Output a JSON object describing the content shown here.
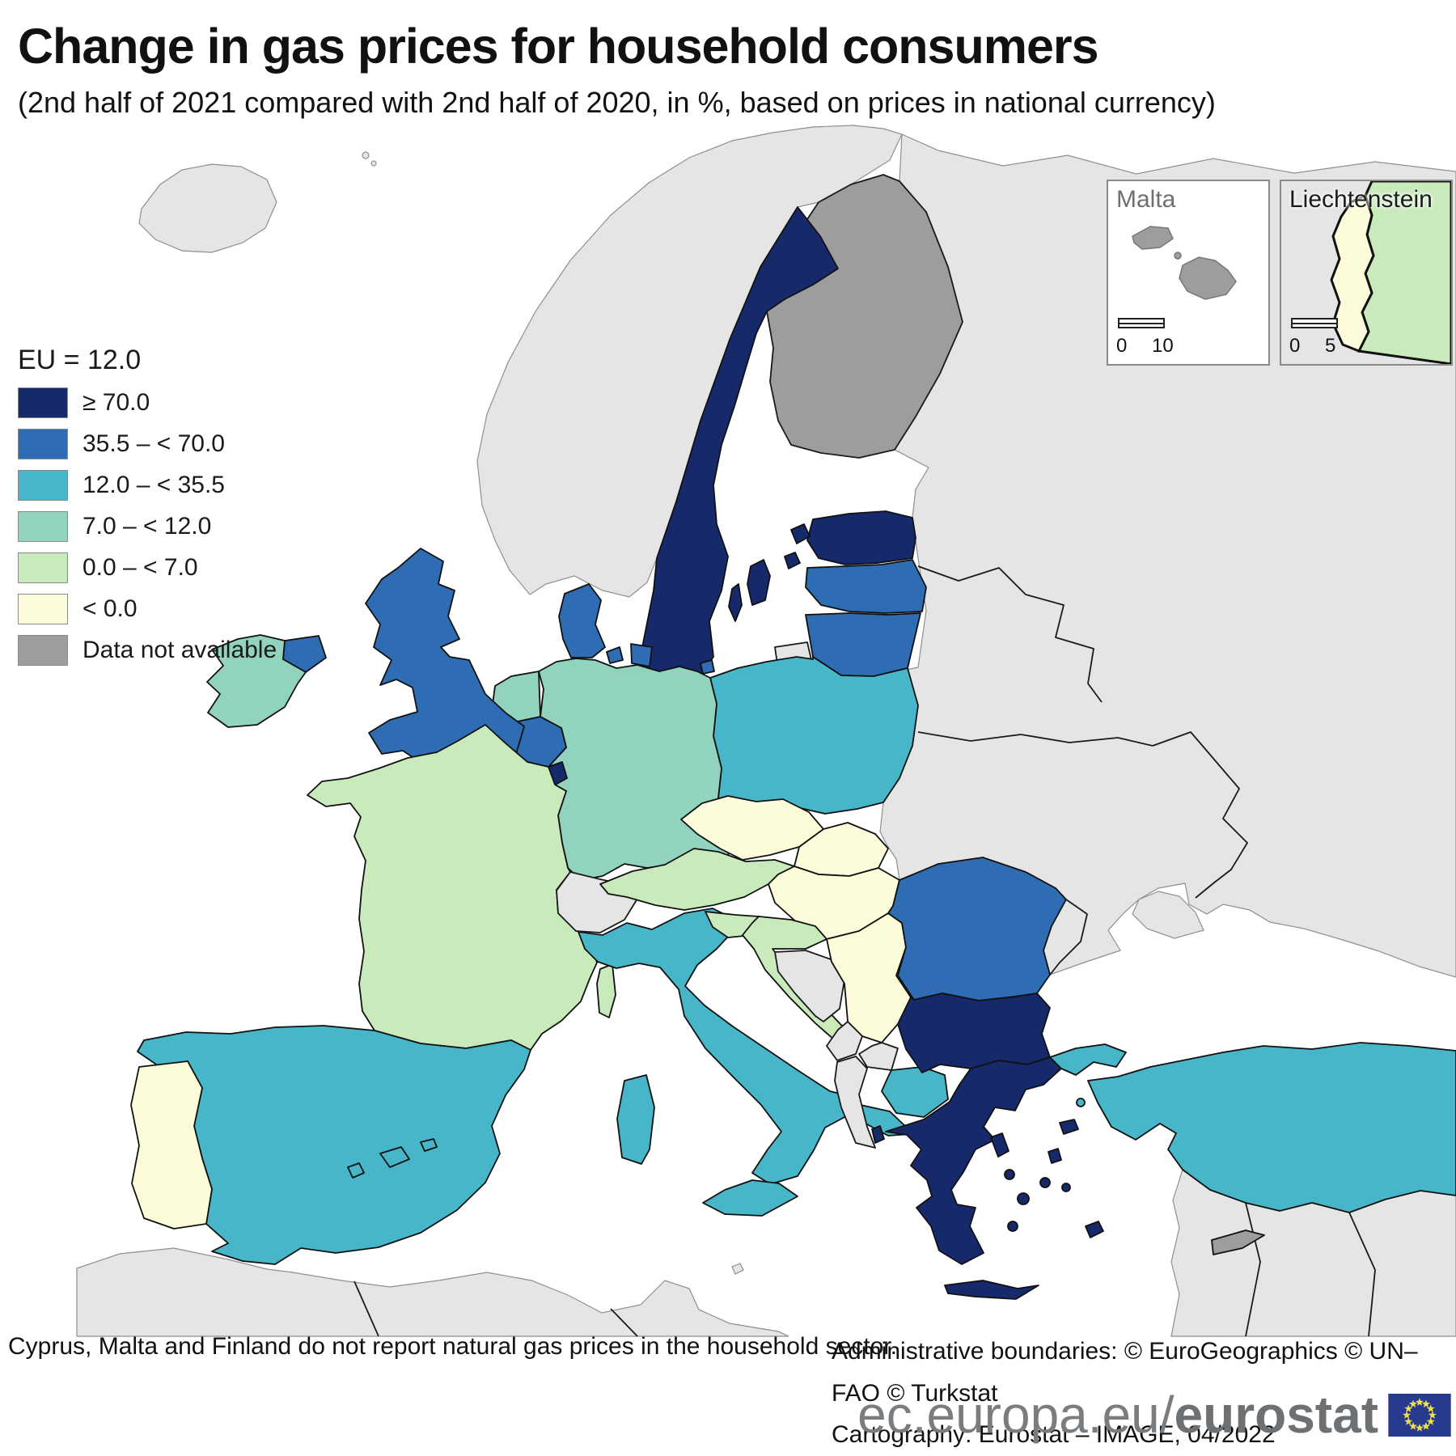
{
  "title": "Change in gas prices for household consumers",
  "subtitle": "(2nd half of 2021 compared with 2nd half of 2020, in %, based on prices in national currency)",
  "legend": {
    "eu_label": "EU = 12.0",
    "items": [
      {
        "label": "≥ 70.0",
        "color": "#16296B"
      },
      {
        "label": "35.5 – < 70.0",
        "color": "#2E6DB4"
      },
      {
        "label": "12.0 – < 35.5",
        "color": "#47B6C8"
      },
      {
        "label": "7.0 – < 12.0",
        "color": "#92D3BF"
      },
      {
        "label": "0.0 – < 7.0",
        "color": "#C9EBBC"
      },
      {
        "label": "< 0.0",
        "color": "#FCFCDA"
      },
      {
        "label": "Data not available",
        "color": "#9D9D9D"
      }
    ]
  },
  "insets": [
    {
      "title": "Malta",
      "scale_min": "0",
      "scale_max": "10"
    },
    {
      "title": "Liechtenstein",
      "scale_min": "0",
      "scale_max": "5"
    }
  ],
  "notes": {
    "left": "Cyprus, Malta and Finland do not report natural gas prices in the household sector.",
    "boundaries": "Administrative boundaries: © EuroGeographics © UN–FAO © Turkstat",
    "cartography": "Cartography: Eurostat – IMAGE, 04/2022"
  },
  "branding": {
    "url_prefix": "ec.europa.eu/",
    "url_bold": "eurostat",
    "flag_blue": "#283A8E",
    "star_color": "#EDE04A"
  },
  "map": {
    "sea_color": "#FFFFFF",
    "other_land_color": "#E5E5E5",
    "countries": [
      {
        "id": "SE",
        "name": "Sweden",
        "category": "≥ 70.0"
      },
      {
        "id": "EE",
        "name": "Estonia",
        "category": "≥ 70.0"
      },
      {
        "id": "LU",
        "name": "Luxembourg",
        "category": "≥ 70.0"
      },
      {
        "id": "BG",
        "name": "Bulgaria",
        "category": "≥ 70.0"
      },
      {
        "id": "EL",
        "name": "Greece",
        "category": "≥ 70.0"
      },
      {
        "id": "UK",
        "name": "United Kingdom",
        "category": "35.5 – < 70.0"
      },
      {
        "id": "DK",
        "name": "Denmark",
        "category": "35.5 – < 70.0"
      },
      {
        "id": "BE",
        "name": "Belgium",
        "category": "35.5 – < 70.0"
      },
      {
        "id": "LV",
        "name": "Latvia",
        "category": "35.5 – < 70.0"
      },
      {
        "id": "LT",
        "name": "Lithuania",
        "category": "35.5 – < 70.0"
      },
      {
        "id": "RO",
        "name": "Romania",
        "category": "35.5 – < 70.0"
      },
      {
        "id": "ES",
        "name": "Spain",
        "category": "12.0 – < 35.5"
      },
      {
        "id": "IT",
        "name": "Italy",
        "category": "12.0 – < 35.5"
      },
      {
        "id": "PL",
        "name": "Poland",
        "category": "12.0 – < 35.5"
      },
      {
        "id": "TR",
        "name": "Turkey",
        "category": "12.0 – < 35.5"
      },
      {
        "id": "MK",
        "name": "North Macedonia",
        "category": "12.0 – < 35.5"
      },
      {
        "id": "IE",
        "name": "Ireland",
        "category": "7.0 – < 12.0"
      },
      {
        "id": "DE",
        "name": "Germany",
        "category": "7.0 – < 12.0"
      },
      {
        "id": "NL",
        "name": "Netherlands",
        "category": "7.0 – < 12.0"
      },
      {
        "id": "FR",
        "name": "France",
        "category": "0.0 – < 7.0"
      },
      {
        "id": "AT",
        "name": "Austria",
        "category": "0.0 – < 7.0"
      },
      {
        "id": "HR",
        "name": "Croatia",
        "category": "0.0 – < 7.0"
      },
      {
        "id": "SI",
        "name": "Slovenia",
        "category": "0.0 – < 7.0"
      },
      {
        "id": "PT",
        "name": "Portugal",
        "category": "< 0.0"
      },
      {
        "id": "CZ",
        "name": "Czechia",
        "category": "< 0.0"
      },
      {
        "id": "SK",
        "name": "Slovakia",
        "category": "< 0.0"
      },
      {
        "id": "HU",
        "name": "Hungary",
        "category": "< 0.0"
      },
      {
        "id": "RS",
        "name": "Serbia",
        "category": "< 0.0"
      },
      {
        "id": "LI",
        "name": "Liechtenstein",
        "category": "< 0.0"
      },
      {
        "id": "FI",
        "name": "Finland",
        "category": "Data not available"
      },
      {
        "id": "CY",
        "name": "Cyprus",
        "category": "Data not available"
      },
      {
        "id": "MT",
        "name": "Malta",
        "category": "Data not available"
      }
    ]
  }
}
